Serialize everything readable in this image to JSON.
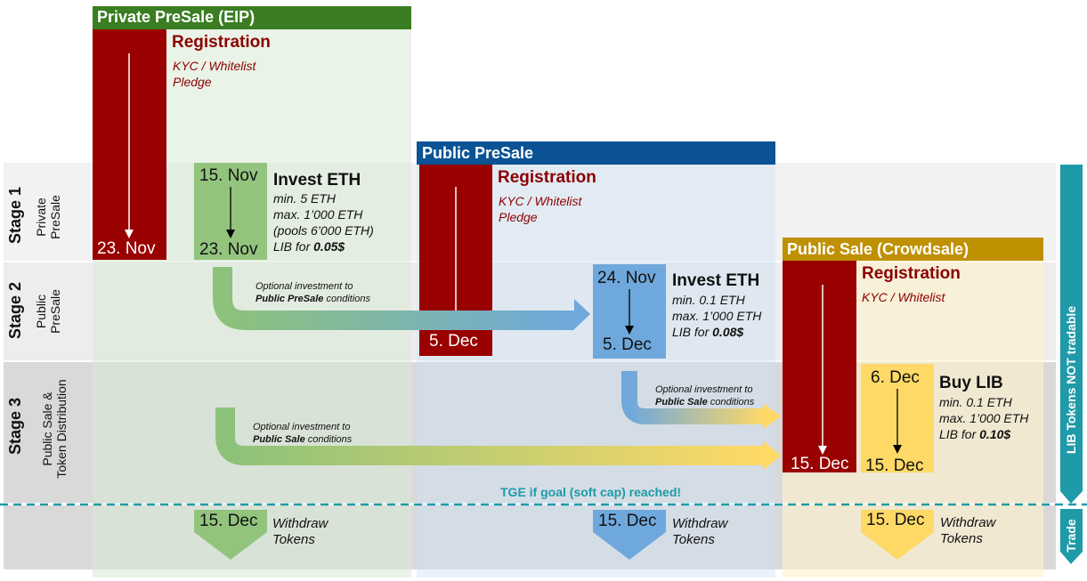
{
  "headers": {
    "private_presale": "Private PreSale (EIP)",
    "public_presale": "Public PreSale",
    "public_sale": "Public Sale (Crowdsale)"
  },
  "stages": [
    {
      "title": "Stage 1",
      "line1": "Private",
      "line2": "PreSale"
    },
    {
      "title": "Stage 2",
      "line1": "Public",
      "line2": "PreSale"
    },
    {
      "title": "Stage 3",
      "line1": "Public Sale &",
      "line2": "Token Distribution"
    }
  ],
  "private": {
    "registration": "Registration",
    "reg_sub": [
      "KYC / Whitelist",
      "Pledge"
    ],
    "reg_end": "23. Nov",
    "invest_start": "15. Nov",
    "invest_end": "23. Nov",
    "invest_title": "Invest ETH",
    "invest_lines": [
      "min. 5 ETH",
      "max. 1’000 ETH",
      "(pools 6’000 ETH)"
    ],
    "price_prefix": "LIB for ",
    "price": "0.05$",
    "withdraw_date": "15. Dec",
    "withdraw_lines": [
      "Withdraw",
      "Tokens"
    ]
  },
  "public_pre": {
    "registration": "Registration",
    "reg_sub": [
      "KYC / Whitelist",
      "Pledge"
    ],
    "reg_end": "5. Dec",
    "invest_start": "24. Nov",
    "invest_end": "5. Dec",
    "invest_title": "Invest ETH",
    "invest_lines": [
      "min. 0.1 ETH",
      "max. 1’000 ETH"
    ],
    "price_prefix": "LIB for ",
    "price": "0.08$",
    "withdraw_date": "15. Dec",
    "withdraw_lines": [
      "Withdraw",
      "Tokens"
    ]
  },
  "public_sale": {
    "registration": "Registration",
    "reg_sub": [
      "KYC / Whitelist"
    ],
    "reg_end": "15. Dec",
    "buy_start": "6. Dec",
    "buy_end": "15. Dec",
    "buy_title": "Buy LIB",
    "buy_lines": [
      "min. 0.1 ETH",
      "max. 1’000 ETH"
    ],
    "price_prefix": "LIB for ",
    "price": "0.10$",
    "withdraw_date": "15. Dec",
    "withdraw_lines": [
      "Withdraw",
      "Tokens"
    ]
  },
  "optional": {
    "pp_line1": "Optional investment to",
    "pp_bold": "Public PreSale",
    "pp_rest": " conditions",
    "ps_line1": "Optional investment to",
    "ps_bold": "Public Sale",
    "ps_rest": " conditions"
  },
  "tge": "TGE if goal (soft cap) reached!",
  "side": {
    "not_tradable": "LIB Tokens NOT tradable",
    "trade": "Trade"
  },
  "colors": {
    "private_header": "#3a7d22",
    "public_presale_header": "#0b5394",
    "public_sale_header": "#bf9000",
    "registration": "#990000",
    "private_invest": "#93c47d",
    "public_invest": "#6fa8dc",
    "public_buy": "#ffd966",
    "teal": "#1f9aa8"
  }
}
